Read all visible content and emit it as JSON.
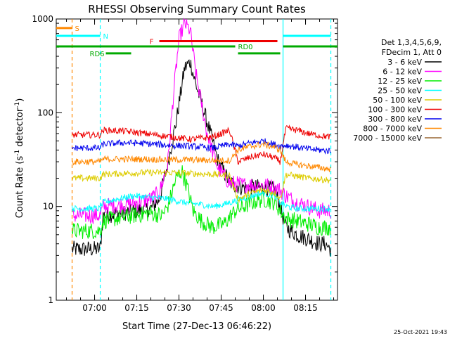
{
  "chart_data": {
    "type": "line",
    "title": "RHESSI Observing Summary Count Rates",
    "xlabel": "Start Time (27-Dec-13 06:46:22)",
    "ylabel": "Count Rate (s⁻¹ detector⁻¹)",
    "ylabel_parts": {
      "main": "Count Rate (s",
      "sup1": "-1",
      "mid": " detector",
      "sup2": "-1",
      "end": ")"
    },
    "y_scale": "log",
    "ylim": [
      1,
      1000
    ],
    "xlim": [
      "06:46:22",
      "08:26:22"
    ],
    "y_ticks": [
      {
        "value": 1,
        "label": "1"
      },
      {
        "value": 10,
        "label": "10"
      },
      {
        "value": 100,
        "label": "100"
      },
      {
        "value": 1000,
        "label": "1000"
      }
    ],
    "x_ticks": [
      {
        "time": "07:00",
        "label": "07:00"
      },
      {
        "time": "07:15",
        "label": "07:15"
      },
      {
        "time": "07:30",
        "label": "07:30"
      },
      {
        "time": "07:45",
        "label": "07:45"
      },
      {
        "time": "08:00",
        "label": "08:00"
      },
      {
        "time": "08:15",
        "label": "08:15"
      }
    ],
    "legend": {
      "placement": "right",
      "header": [
        "Det 1,3,4,5,6,9,",
        "FDecim 1, Att 0"
      ],
      "entries": [
        {
          "label": "3 - 6 keV",
          "color": "#000000"
        },
        {
          "label": "6 - 12 keV",
          "color": "#ff00ff"
        },
        {
          "label": "12 - 25 keV",
          "color": "#00ee00"
        },
        {
          "label": "25 - 50 keV",
          "color": "#00ffff"
        },
        {
          "label": "50 - 100 keV",
          "color": "#ddcc00"
        },
        {
          "label": "100 - 300 keV",
          "color": "#ee0000"
        },
        {
          "label": "300 - 800 keV",
          "color": "#0000ee"
        },
        {
          "label": "800 - 7000 keV",
          "color": "#ff8800"
        },
        {
          "label": "7000 - 15000 keV",
          "color": "#996633"
        }
      ]
    },
    "series": [
      {
        "name": "3 - 6 keV",
        "color": "#000000",
        "x": [
          "06:52",
          "07:02",
          "07:03",
          "07:10",
          "07:15",
          "07:20",
          "07:23",
          "07:26",
          "07:29",
          "07:32",
          "07:34",
          "07:36",
          "07:40",
          "07:44",
          "07:48",
          "07:52",
          "07:56",
          "08:00",
          "08:04",
          "08:06",
          "08:08",
          "08:12",
          "08:16",
          "08:20",
          "08:22",
          "08:24"
        ],
        "y": [
          3.5,
          3.5,
          8,
          8.5,
          9,
          9.5,
          12,
          28,
          80,
          300,
          350,
          200,
          80,
          30,
          18,
          16,
          16,
          16,
          15,
          10,
          6,
          5,
          4.5,
          4,
          4,
          3.5
        ]
      },
      {
        "name": "6 - 12 keV",
        "color": "#ff00ff",
        "x": [
          "06:52",
          "07:02",
          "07:03",
          "07:10",
          "07:15",
          "07:20",
          "07:23",
          "07:26",
          "07:28",
          "07:30",
          "07:32",
          "07:34",
          "07:36",
          "07:40",
          "07:44",
          "07:48",
          "07:52",
          "07:56",
          "08:00",
          "08:04",
          "08:06",
          "08:08",
          "08:12",
          "08:16",
          "08:20",
          "08:24"
        ],
        "y": [
          8,
          8,
          10,
          10.5,
          11,
          12,
          14,
          28,
          150,
          600,
          900,
          750,
          260,
          60,
          25,
          18,
          17,
          17,
          17,
          16,
          15,
          13,
          11,
          10,
          9,
          9
        ]
      },
      {
        "name": "12 - 25 keV",
        "color": "#00ee00",
        "x": [
          "06:52",
          "07:02",
          "07:03",
          "07:08",
          "07:14",
          "07:20",
          "07:24",
          "07:26",
          "07:29",
          "07:31",
          "07:33",
          "07:35",
          "07:38",
          "07:42",
          "07:46",
          "07:50",
          "07:56",
          "08:00",
          "08:04",
          "08:06",
          "08:08",
          "08:12",
          "08:16",
          "08:20",
          "08:24"
        ],
        "y": [
          5.5,
          5.5,
          7,
          7.5,
          8,
          8.5,
          8,
          10,
          20,
          24,
          16,
          9,
          7,
          6,
          6.5,
          9,
          11,
          12,
          11,
          9,
          7.5,
          7,
          6.5,
          6,
          6
        ]
      },
      {
        "name": "25 - 50 keV",
        "color": "#00ffff",
        "x": [
          "06:52",
          "07:02",
          "07:03",
          "07:08",
          "07:14",
          "07:20",
          "07:26",
          "07:32",
          "07:38",
          "07:42",
          "07:46",
          "07:50",
          "07:56",
          "08:00",
          "08:04",
          "08:06",
          "08:08",
          "08:12",
          "08:16",
          "08:20",
          "08:24"
        ],
        "y": [
          9.5,
          9.5,
          11,
          12,
          13,
          12.5,
          12,
          11,
          10.5,
          10,
          10.5,
          11.5,
          13,
          14,
          13,
          11,
          10,
          9.5,
          9.5,
          9.5,
          9.5
        ]
      },
      {
        "name": "50 - 100 keV",
        "color": "#ddcc00",
        "x": [
          "06:52",
          "07:02",
          "07:03",
          "07:10",
          "07:18",
          "07:26",
          "07:34",
          "07:42",
          "07:48",
          "07:51",
          "07:56",
          "08:00",
          "08:04",
          "08:06",
          "08:08",
          "08:12",
          "08:16",
          "08:20",
          "08:24"
        ],
        "y": [
          20,
          20,
          22,
          22.5,
          23,
          23,
          22.5,
          22,
          21.5,
          12,
          14,
          15,
          14,
          12,
          22,
          21,
          20,
          19.5,
          19
        ]
      },
      {
        "name": "100 - 300 keV",
        "color": "#ee0000",
        "x": [
          "06:52",
          "07:02",
          "07:03",
          "07:10",
          "07:18",
          "07:26",
          "07:34",
          "07:42",
          "07:48",
          "07:51",
          "07:56",
          "08:00",
          "08:04",
          "08:06",
          "08:08",
          "08:12",
          "08:16",
          "08:20",
          "08:24"
        ],
        "y": [
          58,
          58,
          65,
          64,
          60,
          56,
          52,
          55,
          65,
          30,
          34,
          36,
          33,
          30,
          68,
          65,
          60,
          57,
          55
        ]
      },
      {
        "name": "300 - 800 keV",
        "color": "#0000ee",
        "x": [
          "06:52",
          "07:02",
          "07:03",
          "07:10",
          "07:18",
          "07:26",
          "07:34",
          "07:42",
          "07:48",
          "07:51",
          "07:56",
          "08:00",
          "08:04",
          "08:06",
          "08:08",
          "08:12",
          "08:16",
          "08:20",
          "08:24"
        ],
        "y": [
          42,
          42,
          46,
          48,
          47,
          45,
          44,
          42,
          46,
          44,
          48,
          50,
          46,
          44,
          45,
          43,
          41,
          40,
          39
        ]
      },
      {
        "name": "800 - 7000 keV",
        "color": "#ff8800",
        "x": [
          "06:52",
          "07:02",
          "07:03",
          "07:10",
          "07:18",
          "07:26",
          "07:34",
          "07:42",
          "07:48",
          "07:51",
          "07:56",
          "08:00",
          "08:04",
          "08:06",
          "08:08",
          "08:12",
          "08:16",
          "08:20",
          "08:24"
        ],
        "y": [
          30,
          30,
          32,
          32,
          32,
          31.5,
          31.5,
          31,
          31,
          40,
          44,
          46,
          43,
          40,
          30,
          28,
          27,
          26,
          25
        ]
      }
    ],
    "annotations": [
      {
        "label": "S",
        "color": "#ff8800",
        "x_start": "06:46:22",
        "x_end": "06:52",
        "y": 800
      },
      {
        "label": "N",
        "color": "#00ffff",
        "x_start": "06:46:22",
        "x_end": "07:02",
        "y": 660,
        "x_end2": null
      },
      {
        "label": "N",
        "color": "#00ffff",
        "x_start": "08:07",
        "x_end": "08:24",
        "y": 660,
        "hide_label": true
      },
      {
        "label": "RD0",
        "color": "#00aa00",
        "x_start": "06:46:22",
        "x_end": "07:50",
        "y": 510
      },
      {
        "label": "RD0",
        "color": "#00aa00",
        "x_start": "08:07",
        "x_end": "08:26:22",
        "y": 510,
        "hide_label": true
      },
      {
        "label": "RD6",
        "color": "#00aa00",
        "x_start": "07:04",
        "x_end": "07:13",
        "y": 430
      },
      {
        "label": "RD6",
        "color": "#00aa00",
        "x_start": "07:51",
        "x_end": "08:06",
        "y": 430,
        "hide_label": true
      },
      {
        "label": "F",
        "color": "#ee0000",
        "x_start": "07:23",
        "x_end": "08:05",
        "y": 580
      }
    ],
    "vertical_markers": [
      {
        "time": "06:52",
        "color": "#ff8800",
        "style": "dashed"
      },
      {
        "time": "07:02",
        "color": "#00ffff",
        "style": "dashed"
      },
      {
        "time": "08:07",
        "color": "#00ffff",
        "style": "solid"
      },
      {
        "time": "08:24",
        "color": "#00ffff",
        "style": "dashed"
      }
    ],
    "grid": false
  },
  "footer": {
    "timestamp": "25-Oct-2021 19:43"
  }
}
